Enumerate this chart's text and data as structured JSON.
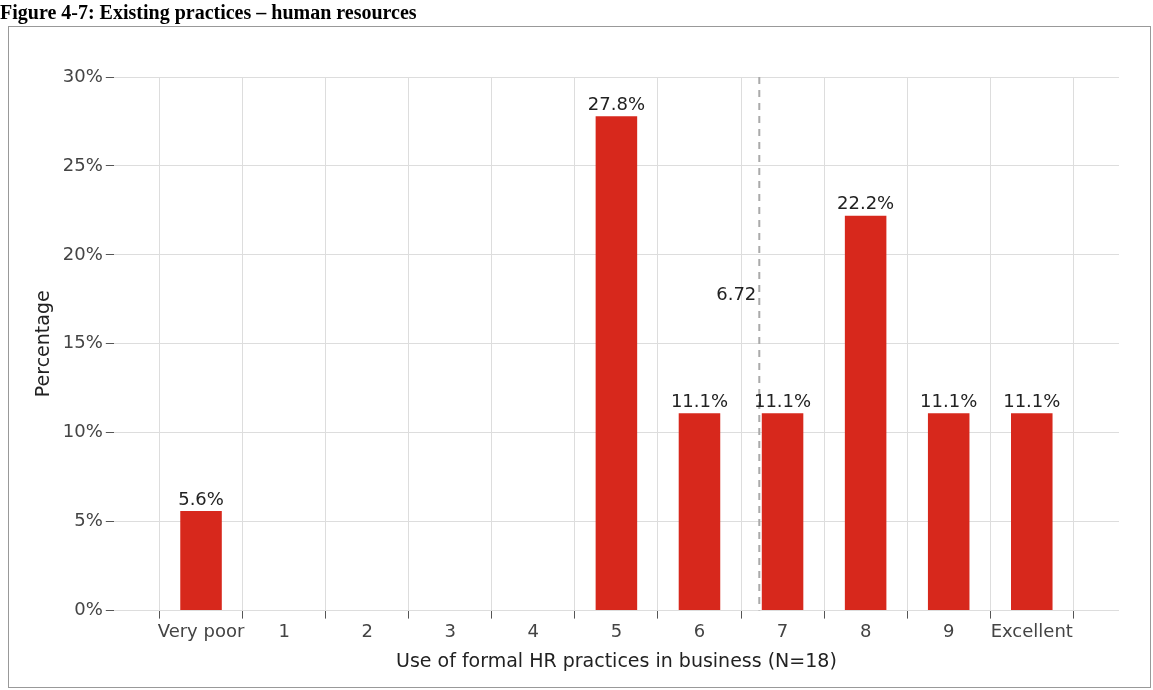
{
  "chart_data": {
    "type": "bar",
    "title": "Figure 4-7: Existing practices – human resources",
    "xlabel": "Use of formal HR practices in business (N=18)",
    "ylabel": "Percentage",
    "x": [
      0,
      1,
      2,
      3,
      4,
      5,
      6,
      7,
      8,
      9,
      10
    ],
    "values": [
      5.6,
      0,
      0,
      0,
      0,
      27.8,
      11.1,
      11.1,
      22.2,
      11.1,
      11.1
    ],
    "value_labels": [
      "5.6%",
      null,
      null,
      null,
      null,
      "27.8%",
      "11.1%",
      "11.1%",
      "22.2%",
      "11.1%",
      "11.1%"
    ],
    "color": "#d7281c",
    "xlim": [
      -0.5,
      10.5
    ],
    "xticks": [
      {
        "value": 0,
        "label": "Very poor"
      },
      1,
      2,
      3,
      4,
      5,
      6,
      7,
      8,
      9,
      {
        "value": 10,
        "label": "Excellent"
      }
    ],
    "ylim": [
      0,
      30
    ],
    "yticks": [
      {
        "value": 0,
        "label": "0%"
      },
      {
        "value": 5,
        "label": "5%"
      },
      {
        "value": 10,
        "label": "10%"
      },
      {
        "value": 15,
        "label": "15%"
      },
      {
        "value": 20,
        "label": "20%"
      },
      {
        "value": 25,
        "label": "25%"
      },
      {
        "value": 30,
        "label": "30%"
      }
    ],
    "ref_lines": [
      {
        "axis": "x",
        "value": 6.72,
        "label": "6.72",
        "color": "#aaaaaa",
        "line_style": "dashed"
      }
    ],
    "grid": true,
    "legend": false
  }
}
